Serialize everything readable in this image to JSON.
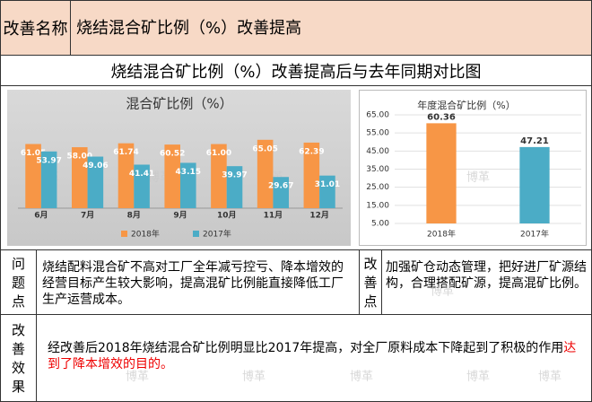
{
  "header": {
    "label": "改善名称",
    "value": "烧结混合矿比例（%）改善提高"
  },
  "section_title": "烧结混合矿比例（%）改善提高后与去年同期对比图",
  "watermark": "博革",
  "chart_data": [
    {
      "type": "bar",
      "title": "混合矿比例（%）",
      "categories": [
        "6月",
        "7月",
        "8月",
        "9月",
        "10月",
        "11月",
        "12月"
      ],
      "series": [
        {
          "name": "2018年",
          "color": "#f79646",
          "values": [
            61.05,
            58,
            61.74,
            60.52,
            61,
            65.05,
            62.39
          ],
          "value_labels": [
            "61.05",
            "58.00",
            "61.74",
            "60.52",
            "61.00",
            "65.05",
            "62.39"
          ]
        },
        {
          "name": "2017年",
          "color": "#4bacc6",
          "values": [
            53.97,
            49.06,
            41.41,
            43.15,
            39.97,
            29.67,
            31.01
          ]
        }
      ],
      "ylim": [
        0,
        70
      ],
      "legend": "bottom"
    },
    {
      "type": "bar",
      "title": "年度混合矿比例（%）",
      "categories": [
        "2018年",
        "2017年"
      ],
      "values": [
        60.36,
        47.21
      ],
      "colors": [
        "#f79646",
        "#4bacc6"
      ],
      "ylim": [
        5,
        65
      ],
      "yticks": [
        {
          "value": 5,
          "label": "5.00"
        },
        {
          "value": 15,
          "label": "15.00"
        },
        {
          "value": 25,
          "label": "25.00"
        },
        {
          "value": 35,
          "label": "35.00"
        },
        {
          "value": 45,
          "label": "45.00"
        },
        {
          "value": 55,
          "label": "55.00"
        },
        {
          "value": 65,
          "label": "65.00"
        }
      ],
      "grid": true
    }
  ],
  "problem": {
    "label": "问题点",
    "text": "烧结配料混合矿不高对工厂全年减亏控亏、降本增效的经营目标产生较大影响，提高混矿比例能直接降低工厂生产运营成本。"
  },
  "improvement": {
    "label": "改善点",
    "text": "加强矿仓动态管理，把好进厂矿源结构，合理搭配矿源，提高混矿比例。"
  },
  "effect": {
    "label": "改善效果",
    "text": "经改善后2018年烧结混合矿比例明显比2017年提高，对全厂原料成本下降起到了积极的作用",
    "highlight": "达到了降本增效的目的。"
  }
}
